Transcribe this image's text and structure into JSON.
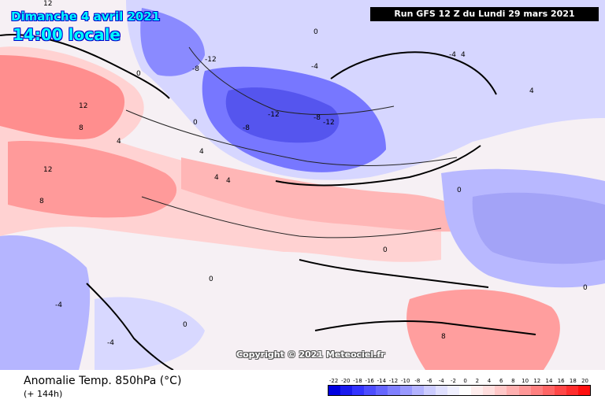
{
  "header": {
    "date": "Dimanche 4 avril 2021",
    "time": "14:00 locale",
    "run": "Run GFS 12 Z du Lundi 29 mars 2021"
  },
  "copyright": "Copyright © 2021 Meteociel.fr",
  "footer": {
    "variable": "Anomalie Temp. 850hPa (°C)",
    "lead": "(+ 144h)"
  },
  "legend": {
    "labels": [
      "-22",
      "-20",
      "-18",
      "-16",
      "-14",
      "-12",
      "-10",
      "-8",
      "-6",
      "-4",
      "-2",
      "0",
      "2",
      "4",
      "6",
      "8",
      "10",
      "12",
      "14",
      "16",
      "18",
      "20"
    ],
    "colors": [
      "#0000e0",
      "#1a1aee",
      "#3333ff",
      "#4d4dff",
      "#6666ff",
      "#8080ff",
      "#9999ff",
      "#b3b3ff",
      "#ccccff",
      "#e0e0ff",
      "#f0f0ff",
      "#ffffff",
      "#ffeeee",
      "#ffdede",
      "#ffc8c8",
      "#ffb0b0",
      "#ff9898",
      "#ff8080",
      "#ff6666",
      "#ff4848",
      "#ff2e2e",
      "#ff1010"
    ]
  },
  "contour_labels": [
    "12",
    "8",
    "12",
    "8",
    "12",
    "4",
    "0",
    "-12",
    "-8",
    "-12",
    "-8",
    "-12",
    "-4",
    "4",
    "4",
    "4",
    "0",
    "0",
    "-4",
    "-4",
    "-4",
    "-8",
    "0",
    "4",
    "4",
    "8",
    "0",
    "0",
    "0",
    "0"
  ]
}
